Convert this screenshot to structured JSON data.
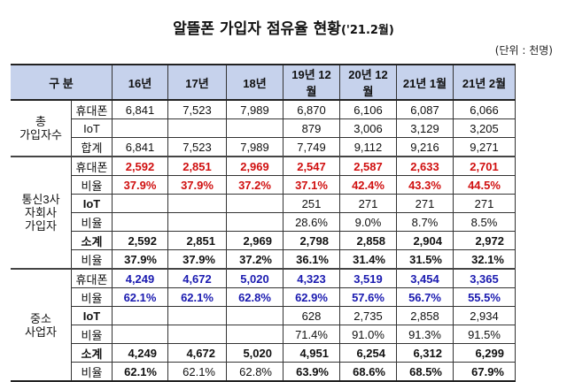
{
  "title": {
    "main": "알뜰폰 가입자 점유율 현황",
    "sub": "('21.2월)"
  },
  "unit": "(단위 : 천명)",
  "header": [
    "구 분",
    "16년",
    "17년",
    "18년",
    "19년 12월",
    "20년 12월",
    "21년 1월",
    "21년 2월"
  ],
  "groups": [
    {
      "label": "총\n가입자수",
      "rows": [
        {
          "label": "휴대폰",
          "style": "",
          "values": [
            "6,841",
            "7,523",
            "7,989",
            "6,870",
            "6,106",
            "6,087",
            "6,066"
          ]
        },
        {
          "label": "IoT",
          "style": "",
          "values": [
            "",
            "",
            "",
            "879",
            "3,006",
            "3,129",
            "3,205"
          ]
        },
        {
          "label": "합계",
          "style": "",
          "values": [
            "6,841",
            "7,523",
            "7,989",
            "7,749",
            "9,112",
            "9,216",
            "9,271"
          ]
        }
      ]
    },
    {
      "label": "통신3사\n자회사\n가입자",
      "rows": [
        {
          "label": "휴대폰",
          "style": "red",
          "values": [
            "2,592",
            "2,851",
            "2,969",
            "2,547",
            "2,587",
            "2,633",
            "2,701"
          ]
        },
        {
          "label": "비율",
          "style": "red",
          "values": [
            "37.9%",
            "37.9%",
            "37.2%",
            "37.1%",
            "42.4%",
            "43.3%",
            "44.5%"
          ]
        },
        {
          "label": "IoT",
          "style": "",
          "labelBold": true,
          "values": [
            "",
            "",
            "",
            "251",
            "271",
            "271",
            "271"
          ]
        },
        {
          "label": "비율",
          "style": "",
          "values": [
            "",
            "",
            "",
            "28.6%",
            "9.0%",
            "8.7%",
            "8.5%"
          ]
        },
        {
          "label": "소계",
          "style": "b",
          "labelBold": true,
          "values": [
            "2,592",
            "2,851",
            "2,969",
            "2,798",
            "2,858",
            "2,904",
            "2,972"
          ]
        },
        {
          "label": "비율",
          "style": "b",
          "values": [
            "37.9%",
            "37.9%",
            "37.2%",
            "36.1%",
            "31.4%",
            "31.5%",
            "32.1%"
          ]
        }
      ]
    },
    {
      "label": "중소\n사업자",
      "rows": [
        {
          "label": "휴대폰",
          "style": "blue",
          "values": [
            "4,249",
            "4,672",
            "5,020",
            "4,323",
            "3,519",
            "3,454",
            "3,365"
          ]
        },
        {
          "label": "비율",
          "style": "blue",
          "values": [
            "62.1%",
            "62.1%",
            "62.8%",
            "62.9%",
            "57.6%",
            "56.7%",
            "55.5%"
          ]
        },
        {
          "label": "IoT",
          "style": "",
          "labelBold": true,
          "values": [
            "",
            "",
            "",
            "628",
            "2,735",
            "2,858",
            "2,934"
          ]
        },
        {
          "label": "비율",
          "style": "",
          "values": [
            "",
            "",
            "",
            "71.4%",
            "91.0%",
            "91.3%",
            "91.5%"
          ]
        },
        {
          "label": "소계",
          "style": "b",
          "labelBold": true,
          "values": [
            "4,249",
            "4,672",
            "5,020",
            "4,951",
            "6,254",
            "6,312",
            "6,299"
          ]
        },
        {
          "label": "비율",
          "style": "b",
          "values": [
            "62.1%",
            "62.1%",
            "62.8%",
            "63.9%",
            "68.6%",
            "68.5%",
            "67.9%"
          ]
        }
      ]
    }
  ],
  "colors": {
    "header_bg": "#c6d2ec",
    "red": "#d01010",
    "blue": "#1a1ab0"
  }
}
